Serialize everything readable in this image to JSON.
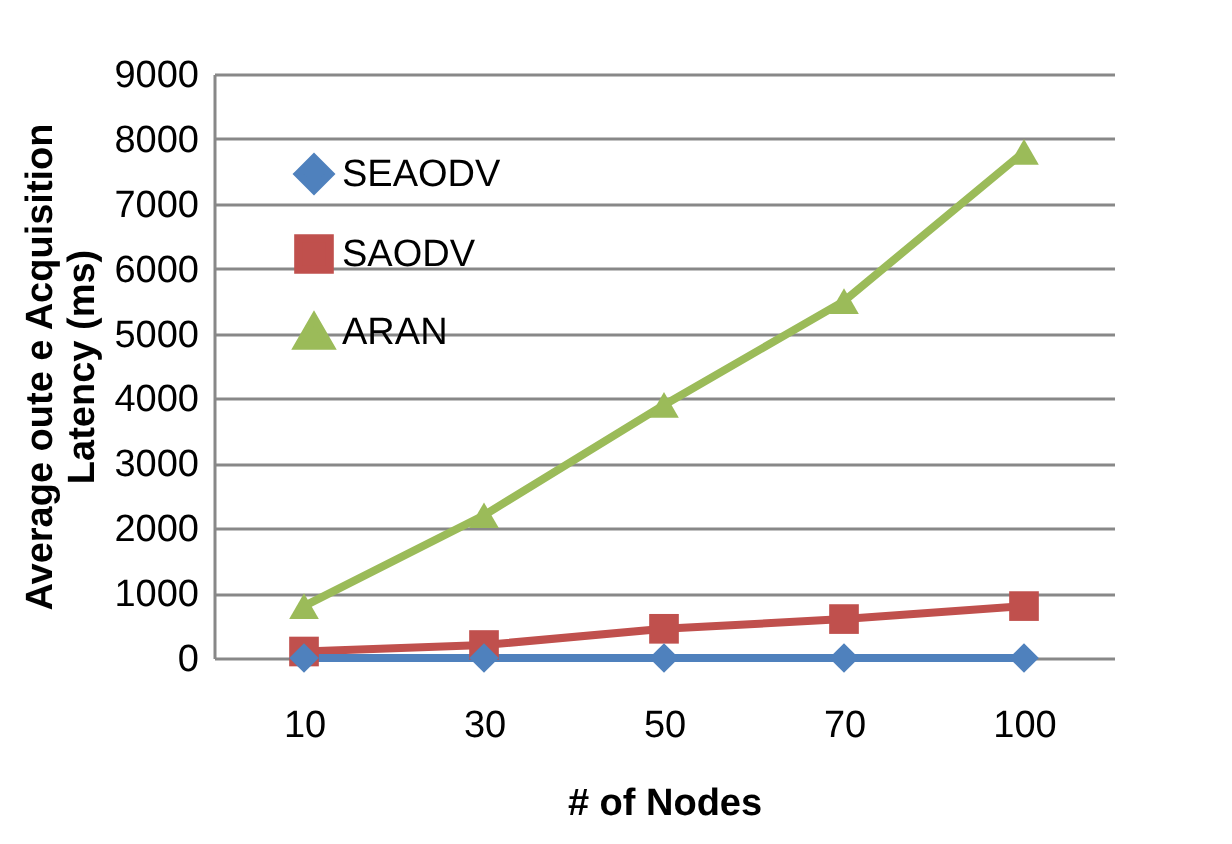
{
  "chart_data": {
    "type": "line",
    "xlabel": "# of Nodes",
    "ylabel": "Average  oute e Acquisition\nLatency (ms)",
    "categories": [
      "10",
      "30",
      "50",
      "70",
      "100"
    ],
    "series": [
      {
        "name": "SEAODV",
        "color": "#4f81bd",
        "marker": "diamond",
        "values": [
          0,
          0,
          0,
          0,
          0
        ]
      },
      {
        "name": "SAODV",
        "color": "#c0504d",
        "marker": "square",
        "values": [
          100,
          200,
          450,
          600,
          800
        ]
      },
      {
        "name": "ARAN",
        "color": "#9bbb59",
        "marker": "triangle",
        "values": [
          800,
          2200,
          3900,
          5500,
          7800
        ]
      }
    ],
    "ylim": [
      0,
      9000
    ],
    "yticks": [
      0,
      1000,
      2000,
      3000,
      4000,
      5000,
      6000,
      7000,
      8000,
      9000
    ],
    "grid": "y",
    "legend": "top left",
    "line_style": "solid"
  }
}
